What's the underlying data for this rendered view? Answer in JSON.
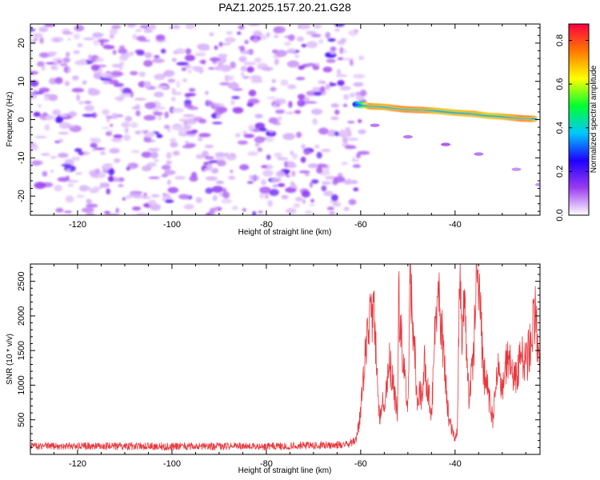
{
  "figure": {
    "title": "PAZ1.2025.157.20.21.G28"
  },
  "chart_data": [
    {
      "type": "heatmap",
      "xlabel": "Height of straight line (km)",
      "ylabel": "Frequency (Hz)",
      "xlim": [
        -130,
        -22
      ],
      "ylim": [
        -25,
        25
      ],
      "xticks": [
        -120,
        -100,
        -80,
        -60,
        -40
      ],
      "yticks": [
        -20,
        -10,
        0,
        10,
        20
      ],
      "xtick_labels": [
        "-120",
        "-100",
        "-80",
        "-60",
        "-40"
      ],
      "ytick_labels": [
        "-20",
        "-10",
        "0",
        "10",
        "20"
      ],
      "colorbar": {
        "label": "Normalized spectral amplitude",
        "range": [
          0,
          0.875
        ],
        "ticks": [
          0.0,
          0.2,
          0.4,
          0.6,
          0.8
        ],
        "tick_labels": [
          "0.0",
          "0.2",
          "0.4",
          "0.6",
          "0.8"
        ],
        "colors": [
          "#ffffff",
          "#9b3cf0",
          "#1e00ff",
          "#00c8ff",
          "#00ff30",
          "#ffff00",
          "#ff7a00",
          "#ff0040"
        ]
      },
      "noise_region": {
        "x_range": [
          -130,
          -61
        ],
        "freq_range": [
          -25,
          25
        ],
        "amplitude_range": [
          0.05,
          0.2
        ]
      },
      "signal_trace": {
        "points": [
          {
            "x": -61,
            "freq": 4.0,
            "amp": 0.3
          },
          {
            "x": -58,
            "freq": 3.5,
            "amp": 0.75
          },
          {
            "x": -55,
            "freq": 3.3,
            "amp": 0.72
          },
          {
            "x": -51,
            "freq": 2.7,
            "amp": 0.78
          },
          {
            "x": -47,
            "freq": 2.5,
            "amp": 0.77
          },
          {
            "x": -44,
            "freq": 2.3,
            "amp": 0.7
          },
          {
            "x": -40,
            "freq": 1.8,
            "amp": 0.7
          },
          {
            "x": -36,
            "freq": 1.5,
            "amp": 0.72
          },
          {
            "x": -33,
            "freq": 1.0,
            "amp": 0.68
          },
          {
            "x": -30,
            "freq": 0.8,
            "amp": 0.7
          },
          {
            "x": -26,
            "freq": 0.3,
            "amp": 0.78
          },
          {
            "x": -23,
            "freq": 0.2,
            "amp": 0.75
          }
        ],
        "faint_branch": [
          {
            "x": -57,
            "freq": -1.5,
            "amp": 0.1
          },
          {
            "x": -50,
            "freq": -4.5,
            "amp": 0.1
          },
          {
            "x": -42,
            "freq": -6.5,
            "amp": 0.12
          },
          {
            "x": -35,
            "freq": -9.0,
            "amp": 0.1
          },
          {
            "x": -27,
            "freq": -13.0,
            "amp": 0.08
          },
          {
            "x": -22,
            "freq": -17.0,
            "amp": 0.08
          }
        ]
      }
    },
    {
      "type": "line",
      "xlabel": "Height of straight line (km)",
      "ylabel": "SNR (10 * v/v)",
      "xlim": [
        -130,
        -22
      ],
      "ylim": [
        0,
        2750
      ],
      "xticks": [
        -120,
        -100,
        -80,
        -60,
        -40
      ],
      "yticks": [
        500,
        1000,
        1500,
        2000,
        2500
      ],
      "xtick_labels": [
        "-120",
        "-100",
        "-80",
        "-60",
        "-40"
      ],
      "ytick_labels": [
        "500",
        "1000",
        "1500",
        "2000",
        "2500"
      ],
      "series": [
        {
          "color": "#e8383d",
          "x": [
            -130,
            -120,
            -100,
            -80,
            -63,
            -61,
            -60,
            -59,
            -58,
            -57,
            -56.5,
            -56,
            -55,
            -54,
            -53,
            -52.2,
            -52,
            -51,
            -50,
            -49.5,
            -48.5,
            -48,
            -47,
            -46.5,
            -45,
            -44,
            -43.5,
            -42,
            -41.3,
            -40.5,
            -40,
            -39.5,
            -39,
            -38.5,
            -38,
            -37.5,
            -37,
            -36,
            -35.5,
            -35,
            -34,
            -33,
            -32,
            -31,
            -30,
            -29,
            -28,
            -27,
            -26,
            -25,
            -24,
            -23,
            -22
          ],
          "y": [
            120,
            120,
            115,
            115,
            140,
            200,
            600,
            1500,
            2050,
            1950,
            1100,
            550,
            800,
            1400,
            900,
            600,
            2300,
            1300,
            700,
            2500,
            1400,
            800,
            900,
            1300,
            600,
            2100,
            2450,
            1000,
            500,
            350,
            200,
            400,
            2600,
            1800,
            2550,
            1200,
            800,
            1500,
            2700,
            2550,
            1200,
            900,
            500,
            1300,
            900,
            1450,
            1200,
            1150,
            1400,
            1300,
            1600,
            2100,
            1000
          ]
        }
      ]
    }
  ]
}
